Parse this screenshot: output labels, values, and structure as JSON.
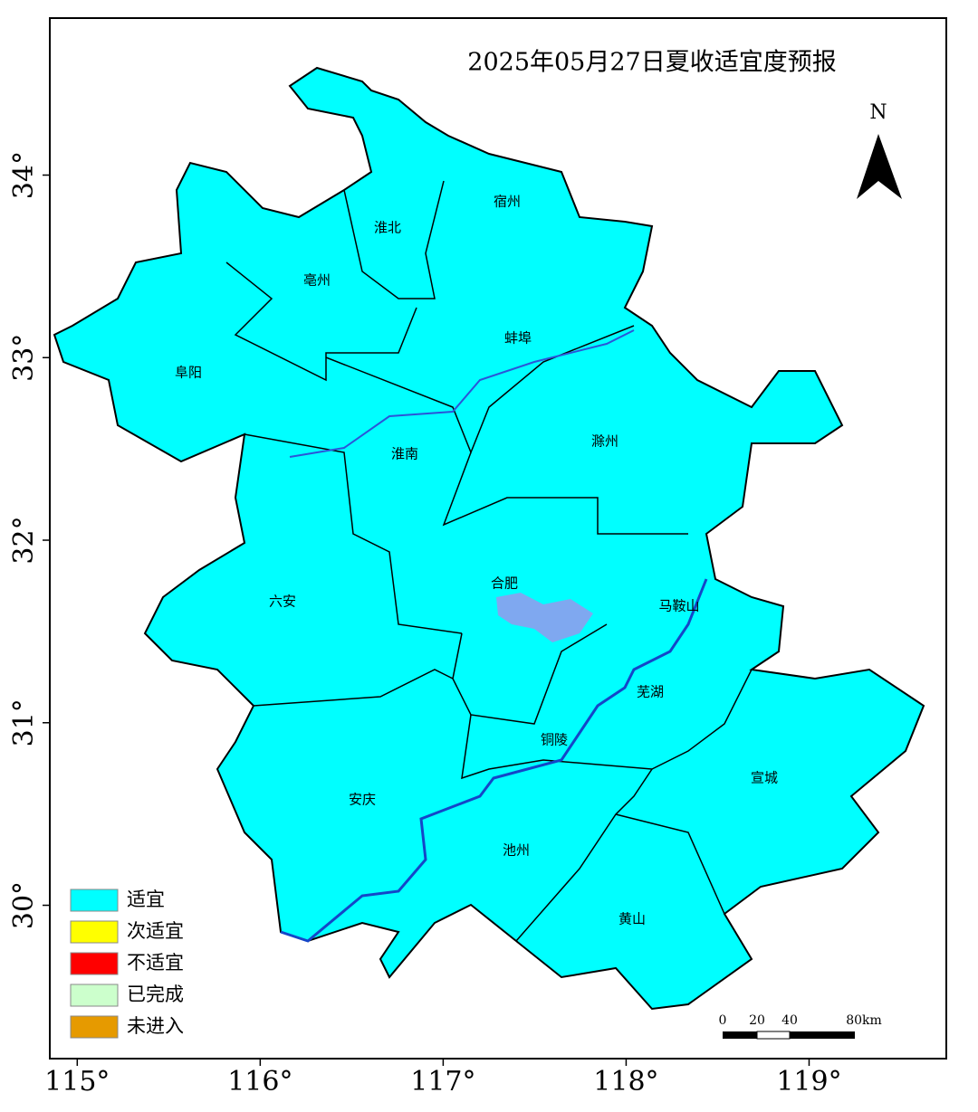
{
  "map": {
    "title": "2025年05月27日夏收适宜度预报",
    "xlim": [
      114.85,
      119.75
    ],
    "ylim": [
      29.16,
      34.86
    ],
    "xticks": [
      {
        "value": 115,
        "label": "115°"
      },
      {
        "value": 116,
        "label": "116°"
      },
      {
        "value": 117,
        "label": "117°"
      },
      {
        "value": 118,
        "label": "118°"
      },
      {
        "value": 119,
        "label": "119°"
      }
    ],
    "yticks": [
      {
        "value": 30,
        "label": "30°"
      },
      {
        "value": 31,
        "label": "31°"
      },
      {
        "value": 32,
        "label": "32°"
      },
      {
        "value": 33,
        "label": "33°"
      },
      {
        "value": 34,
        "label": "34°"
      }
    ],
    "north": "N",
    "scale_bar": [
      "0",
      "20",
      "40",
      "80km"
    ],
    "legend": [
      {
        "name": "适宜",
        "color": "#00ffff"
      },
      {
        "name": "次适宜",
        "color": "#ffff00"
      },
      {
        "name": "不适宜",
        "color": "#ff0000"
      },
      {
        "name": "已完成",
        "color": "#ccffcc"
      },
      {
        "name": "未进入",
        "color": "#e69a00"
      }
    ],
    "cities": [
      "淮北",
      "宿州",
      "亳州",
      "蚌埠",
      "阜阳",
      "淮南",
      "滁州",
      "六安",
      "合肥",
      "马鞍山",
      "芜湖",
      "铜陵",
      "宣城",
      "安庆",
      "池州",
      "黄山"
    ]
  }
}
